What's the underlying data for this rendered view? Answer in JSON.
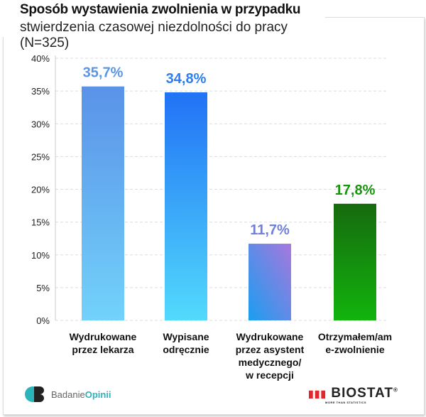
{
  "title": "Sposób wystawienia zwolnienia w przypadku",
  "subtitle": "stwierdzenia czasowej niezdolności do pracy (N=325)",
  "logos": {
    "left": "Badanie Opinii",
    "left_a": "Badanie",
    "left_b": "Opinii",
    "right": "BIOSTAT",
    "right_tagline": "MORE THAN STATISTICS"
  },
  "chart_data": {
    "type": "bar",
    "categories": [
      [
        "Wydrukowane",
        "przez lekarza"
      ],
      [
        "Wypisane",
        "odręcznie"
      ],
      [
        "Wydrukowane",
        "przez asystent",
        "medycznego/",
        "w recepcji"
      ],
      [
        "Otrzymałem/am",
        "e-zwolnienie"
      ]
    ],
    "values": [
      35.7,
      34.8,
      11.7,
      17.8
    ],
    "data_labels": [
      "35,7%",
      "34,8%",
      "11,7%",
      "17,8%"
    ],
    "ylim": [
      0,
      40
    ],
    "yticks": [
      "0%",
      "5%",
      "10%",
      "15%",
      "20%",
      "25%",
      "30%",
      "35%",
      "40%"
    ],
    "grid": true,
    "colors": [
      {
        "top": "#5a92e8",
        "bottom": "#72d2fa",
        "label": "#5b95e8"
      },
      {
        "top": "#2172f5",
        "bottom": "#52dafc",
        "label": "#2e7ef0"
      },
      {
        "top": "#a877dd",
        "bottom": "#1a9ef0",
        "label": "#6e7fe0"
      },
      {
        "top": "#166a0e",
        "bottom": "#12b40d",
        "label": "#16960d"
      }
    ]
  }
}
